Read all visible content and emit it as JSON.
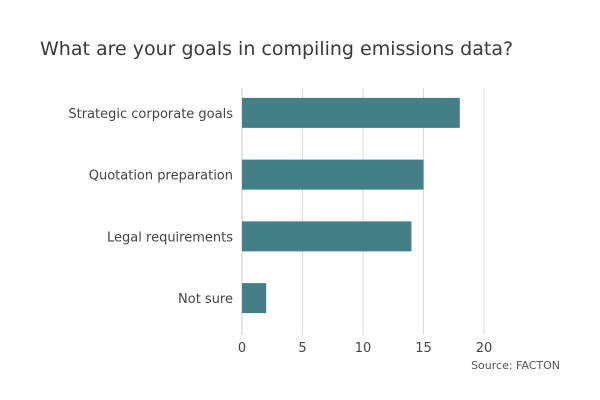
{
  "chart_data": {
    "type": "bar",
    "orientation": "horizontal",
    "title": "What are your goals in compiling emissions data?",
    "categories": [
      "Strategic corporate goals",
      "Quotation preparation",
      "Legal requirements",
      "Not sure"
    ],
    "values": [
      18,
      15,
      14,
      2
    ],
    "xlim": [
      0,
      20
    ],
    "x_ticks": [
      "0",
      "5",
      "10",
      "15",
      "20"
    ],
    "grid": "vertical",
    "legend": "none",
    "bar_color": "#437f86",
    "source": "Source: FACTON"
  }
}
